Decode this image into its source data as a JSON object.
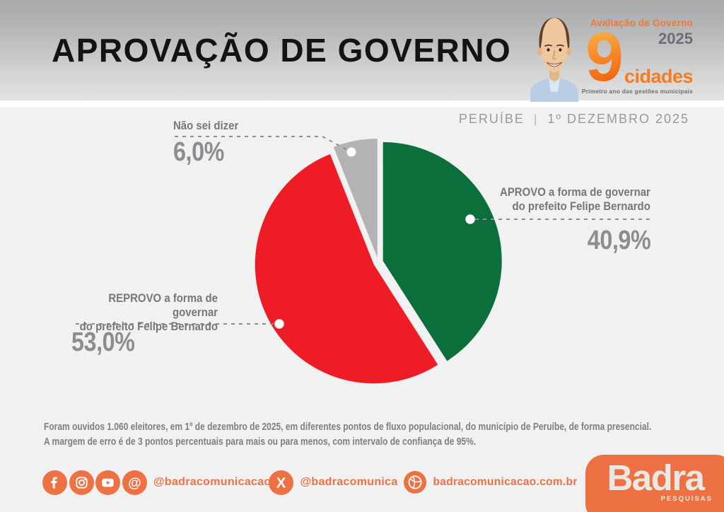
{
  "header": {
    "title": "APROVAÇÃO DE GOVERNO",
    "program_logo": {
      "line1": "Avaliação de Governo",
      "year": "2025",
      "number": "9",
      "word": "cidades",
      "tagline": "Primeiro ano das gestões municipais"
    }
  },
  "subheader": {
    "city": "PERUÍBE",
    "separator": "|",
    "date": "1º DEZEMBRO 2025"
  },
  "chart_data": {
    "type": "pie",
    "title": "APROVAÇÃO DE GOVERNO — PERUÍBE — 1º DEZEMBRO 2025",
    "unit": "percent",
    "direction": "clockwise",
    "start_angle_deg": 0,
    "exploded": true,
    "slices": [
      {
        "label": "APROVO a forma de governar do prefeito Felipe Bernardo",
        "value": 40.9,
        "display": "40,9%",
        "color": "#0b6e3b"
      },
      {
        "label": "REPROVO a forma de governar do prefeito Felipe Bernardo",
        "value": 53.0,
        "display": "53,0%",
        "color": "#ee1c25"
      },
      {
        "label": "Não sei dizer",
        "value": 6.0,
        "display": "6,0%",
        "color": "#b3b3b6"
      }
    ]
  },
  "callouts": {
    "aprovo": {
      "line1": "APROVO a forma de governar",
      "line2": "do prefeito Felipe Bernardo"
    },
    "reprovo": {
      "line1": "REPROVO a forma de governar",
      "line2": "do prefeito Felipe Bernardo"
    },
    "nao_sei": {
      "line1": "Não sei dizer"
    }
  },
  "footnote": {
    "line1": "Foram ouvidos 1.060 eleitores, em 1º de dezembro de 2025, em diferentes pontos de fluxo populacional, do município de Peruíbe, de forma presencial.",
    "line2": "A margem de erro é de 3 pontos percentuais para mais ou para menos, com intervalo de confiança de 95%."
  },
  "social": {
    "handle_meta": "@badracomunicacao",
    "handle_x": "@badracomunica",
    "website": "badracomunicacao.com.br",
    "brand_name": "Badra",
    "brand_sub": "PESQUISAS"
  },
  "colors": {
    "accent_orange": "#ee7144",
    "logo_orange": "#f58220",
    "approve_green": "#0b6e3b",
    "reprove_red": "#ee1c25",
    "neutral_gray": "#b3b3b6",
    "label_gray": "#76777a",
    "pct_gray": "#8b8d90",
    "connector_gray": "#8c8e90"
  }
}
